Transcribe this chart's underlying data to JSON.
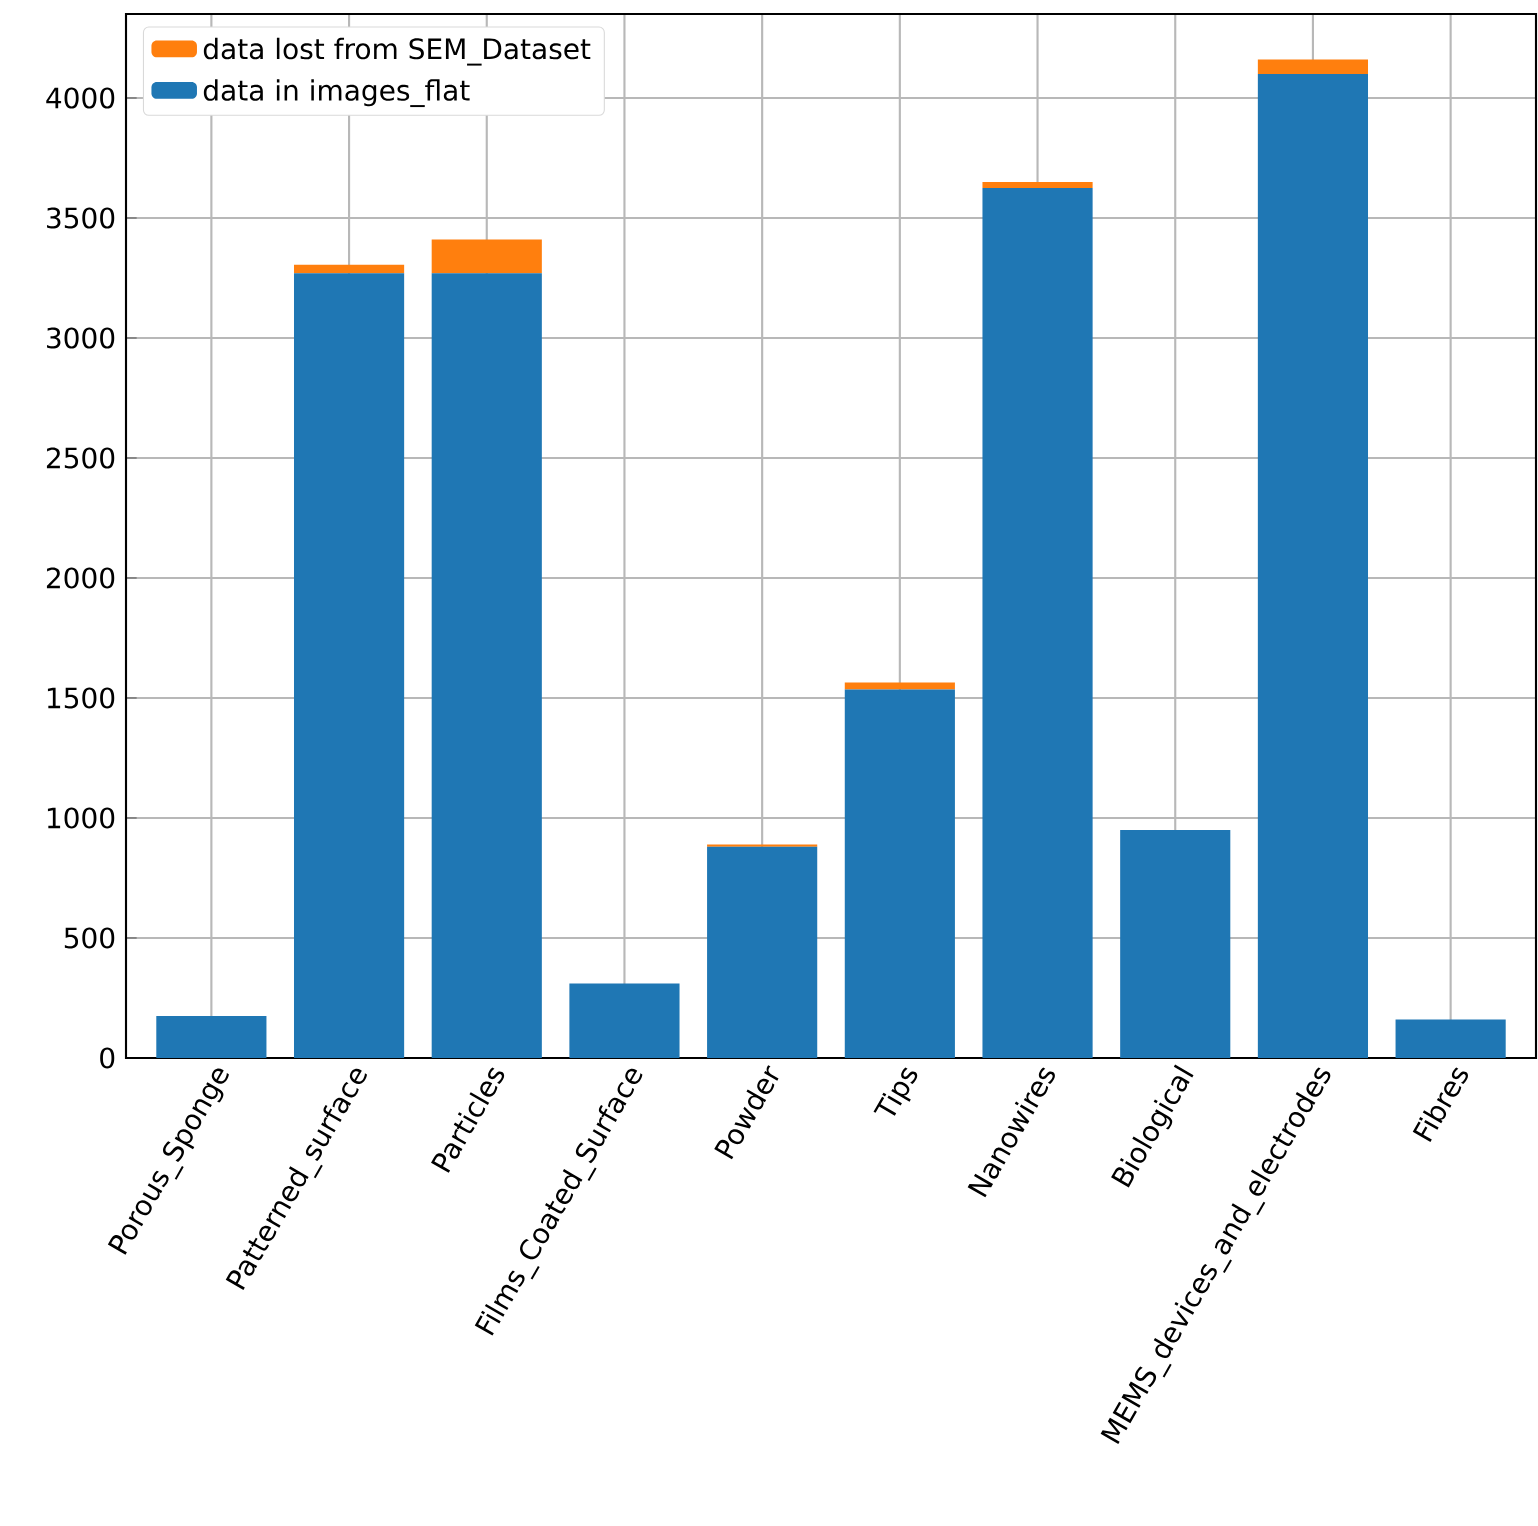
{
  "chart_data": {
    "type": "bar",
    "stacked": true,
    "categories": [
      "Porous_Sponge",
      "Patterned_surface",
      "Particles",
      "Films_Coated_Surface",
      "Powder",
      "Tips",
      "Nanowires",
      "Biological",
      "MEMS_devices_and_electrodes",
      "Fibres"
    ],
    "series": [
      {
        "name": "data in images_flat",
        "color": "#1f77b4",
        "values": [
          175,
          3270,
          3270,
          310,
          880,
          1535,
          3625,
          950,
          4100,
          160
        ]
      },
      {
        "name": "data lost from SEM_Dataset",
        "color": "#ff7f0e",
        "values": [
          0,
          35,
          140,
          0,
          10,
          30,
          25,
          0,
          60,
          0
        ]
      }
    ],
    "ylim": [
      0,
      4350
    ],
    "yticks": [
      0,
      500,
      1000,
      1500,
      2000,
      2500,
      3000,
      3500,
      4000
    ],
    "grid": true,
    "legend": "top left"
  }
}
